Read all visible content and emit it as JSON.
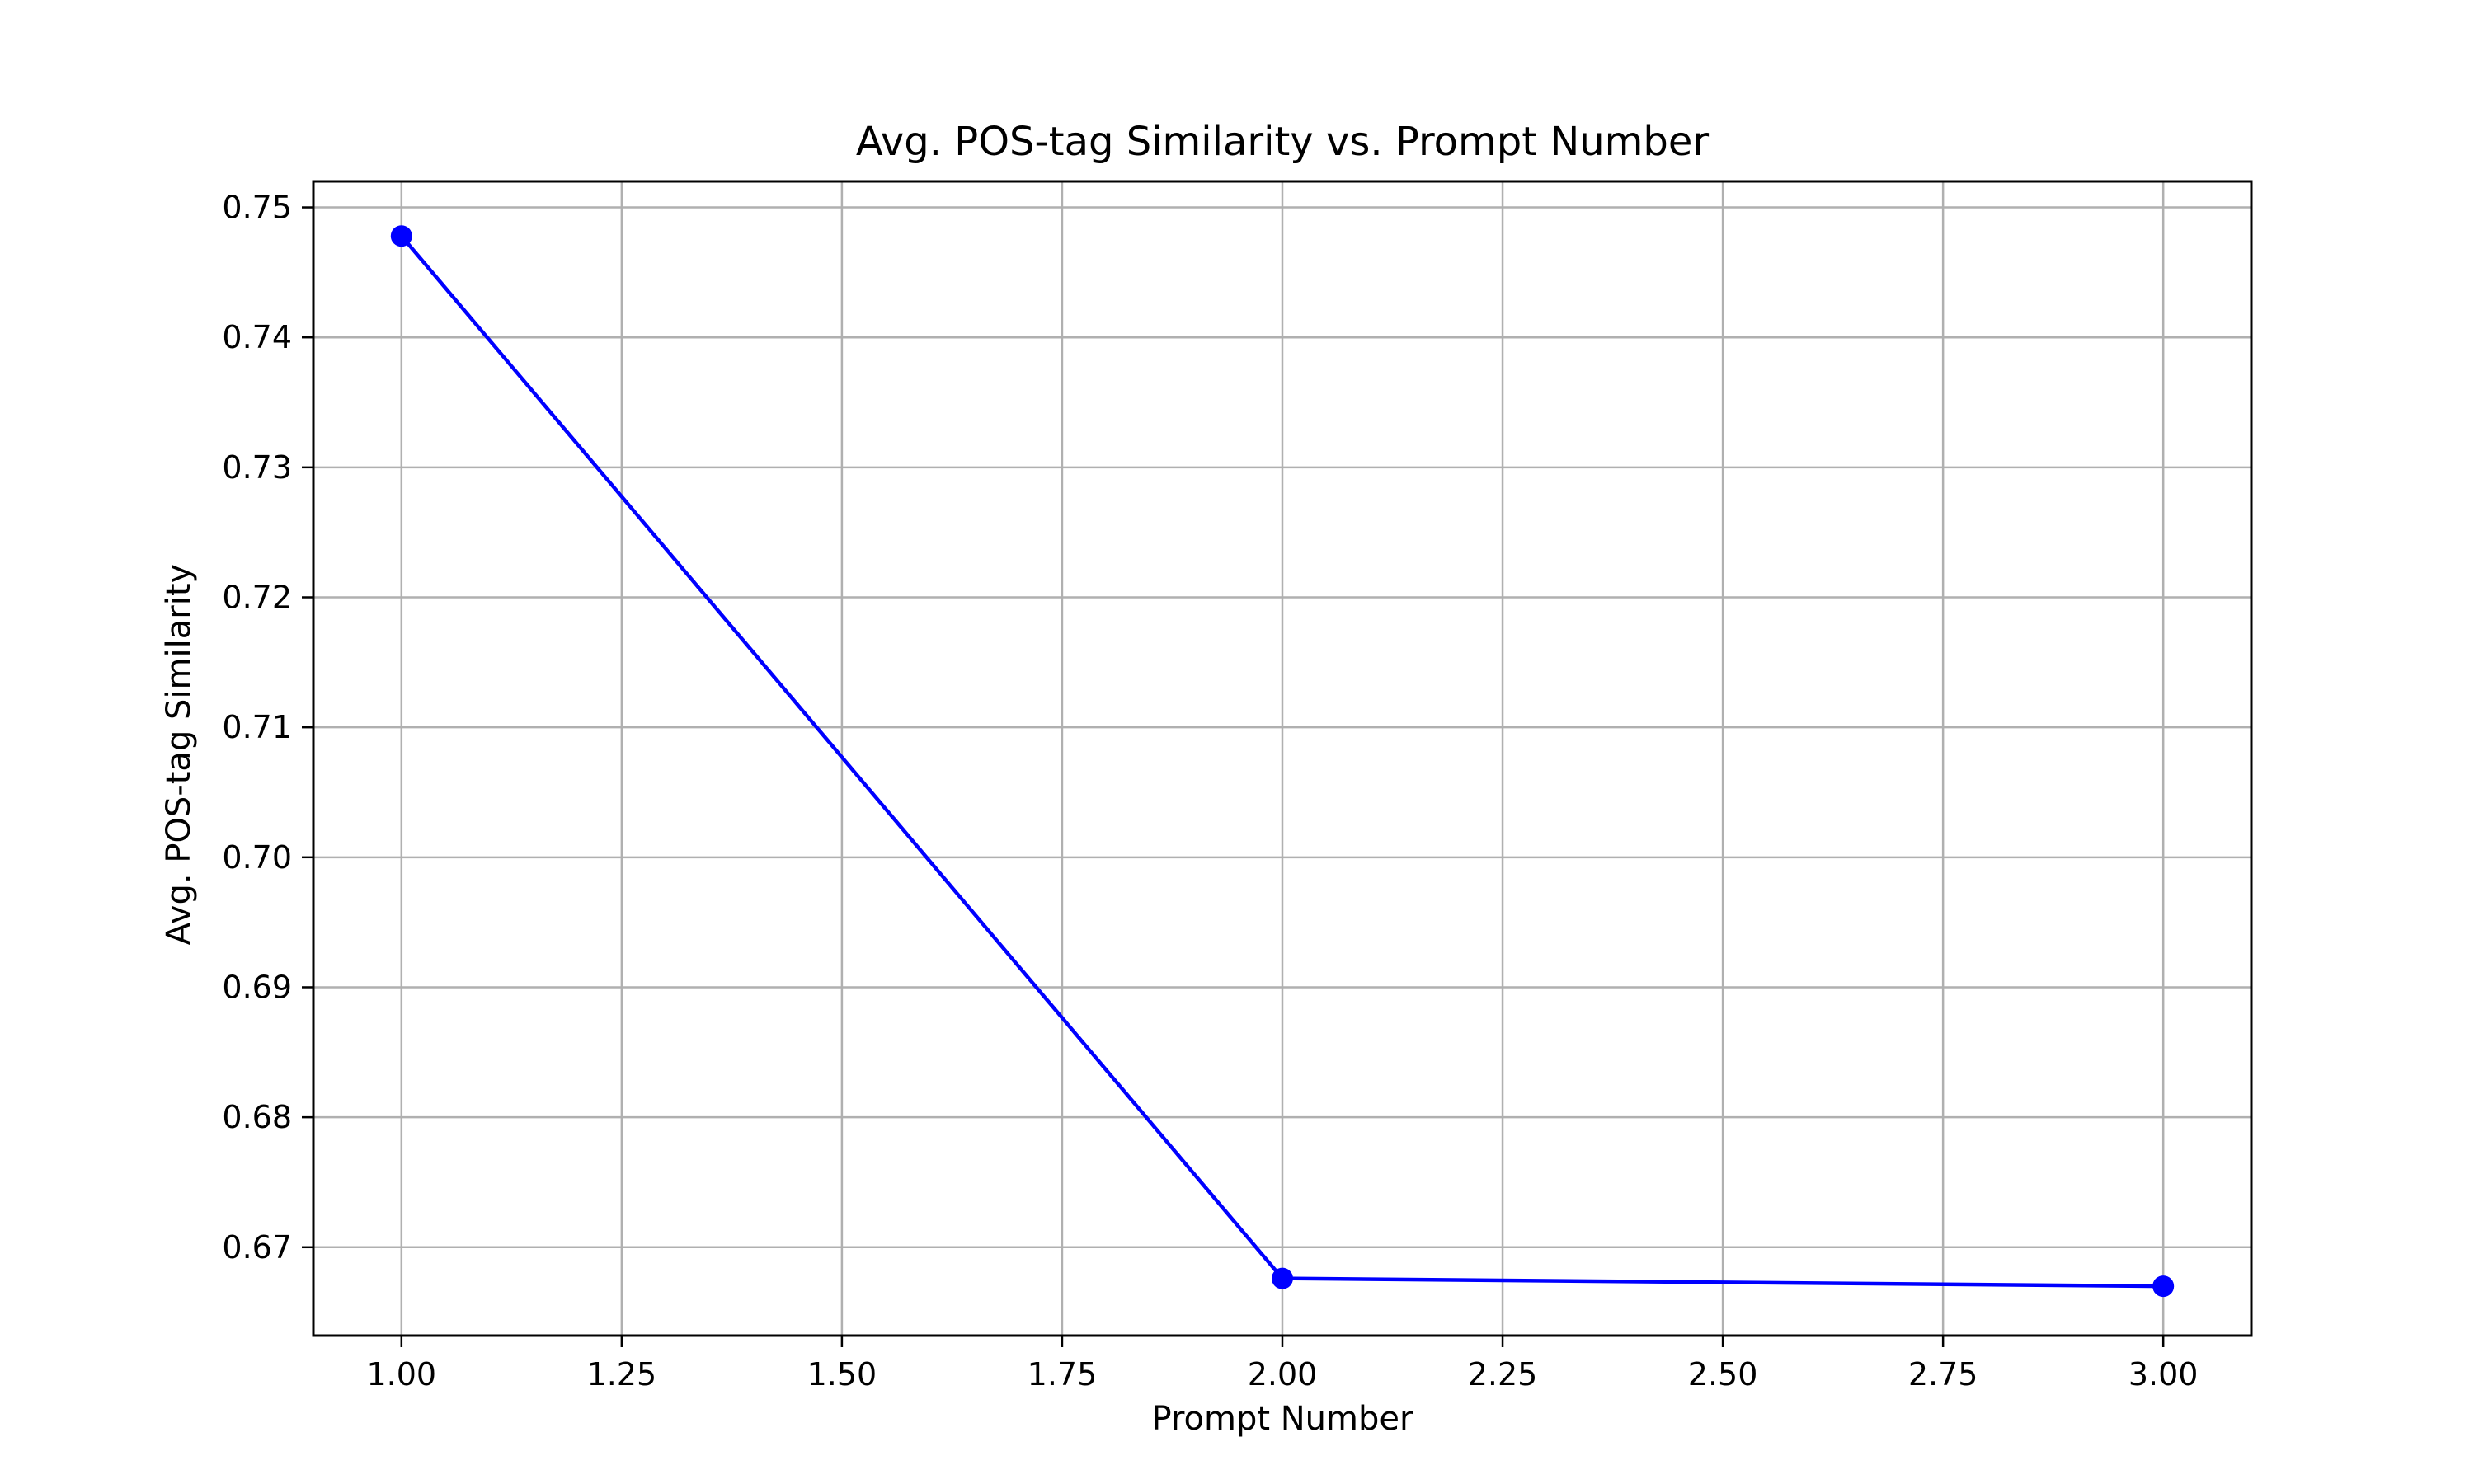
{
  "colors": {
    "series": "#0000ff",
    "grid": "#b0b0b0",
    "axes": "#000000",
    "background": "#ffffff"
  },
  "chart_data": {
    "type": "line",
    "title": "Avg. POS-tag Similarity vs. Prompt Number",
    "xlabel": "Prompt Number",
    "ylabel": "Avg. POS-tag Similarity",
    "xlim": [
      0.9,
      3.1
    ],
    "ylim": [
      0.6632,
      0.752
    ],
    "x_ticks": [
      1.0,
      1.25,
      1.5,
      1.75,
      2.0,
      2.25,
      2.5,
      2.75,
      3.0
    ],
    "x_tick_labels": [
      "1.00",
      "1.25",
      "1.50",
      "1.75",
      "2.00",
      "2.25",
      "2.50",
      "2.75",
      "3.00"
    ],
    "y_ticks": [
      0.67,
      0.68,
      0.69,
      0.7,
      0.71,
      0.72,
      0.73,
      0.74,
      0.75
    ],
    "y_tick_labels": [
      "0.67",
      "0.68",
      "0.69",
      "0.70",
      "0.71",
      "0.72",
      "0.73",
      "0.74",
      "0.75"
    ],
    "grid": true,
    "marker": "circle",
    "series": [
      {
        "x": [
          1,
          2,
          3
        ],
        "values": [
          0.7478,
          0.6676,
          0.667
        ]
      }
    ]
  }
}
